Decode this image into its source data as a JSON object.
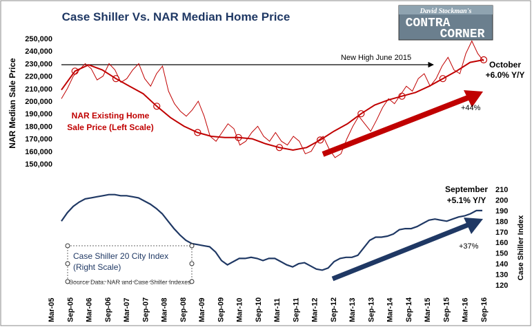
{
  "chart_data": {
    "type": "line",
    "title": "Case Shiller Vs. NAR Median Home Price",
    "logo": {
      "line1": "David Stockman's",
      "line2": "CONTRA",
      "line3": "CORNER"
    },
    "x_tick_labels": [
      "Mar-05",
      "Sep-05",
      "Mar-06",
      "Sep-06",
      "Mar-07",
      "Sep-07",
      "Mar-08",
      "Sep-08",
      "Mar-09",
      "Sep-09",
      "Mar-10",
      "Sep-10",
      "Mar-11",
      "Sep-11",
      "Mar-12",
      "Sep-12",
      "Mar-13",
      "Sep-13",
      "Mar-14",
      "Sep-14",
      "Mar-15",
      "Sep-15",
      "Mar-16",
      "Sep-16"
    ],
    "left_axis": {
      "label": "NAR Median Sale Price",
      "ylim": [
        150000,
        250000
      ],
      "tick_labels": [
        "250,000",
        "240,000",
        "230,000",
        "220,000",
        "210,000",
        "200,000",
        "190,000",
        "180,000",
        "170,000",
        "160,000",
        "150,000"
      ]
    },
    "right_axis": {
      "label": "Case Shiller Index",
      "ylim": [
        120,
        210
      ],
      "tick_labels": [
        "210",
        "200",
        "190",
        "180",
        "170",
        "160",
        "150",
        "140",
        "130",
        "120"
      ]
    },
    "series": [
      {
        "name": "NAR Existing Home Sale Price (Left Scale)",
        "color": "#c00000",
        "axis": "left",
        "values": [
          202000,
          210000,
          220000,
          225000,
          230000,
          226000,
          217000,
          220000,
          230000,
          225000,
          215000,
          218000,
          225000,
          230000,
          218000,
          212000,
          222000,
          228000,
          208000,
          198000,
          192000,
          188000,
          193000,
          200000,
          188000,
          172000,
          168000,
          175000,
          182000,
          178000,
          165000,
          168000,
          175000,
          180000,
          172000,
          168000,
          175000,
          168000,
          165000,
          172000,
          168000,
          158000,
          160000,
          168000,
          172000,
          162000,
          155000,
          158000,
          170000,
          180000,
          188000,
          182000,
          176000,
          185000,
          195000,
          202000,
          198000,
          205000,
          212000,
          208000,
          218000,
          222000,
          212000,
          218000,
          228000,
          235000,
          225000,
          222000,
          238000,
          248000,
          238000,
          232000
        ],
        "trend": [
          209000,
          224000,
          229000,
          225000,
          218000,
          212000,
          206000,
          196000,
          187000,
          180000,
          175000,
          172000,
          171000,
          171000,
          170000,
          166000,
          163000,
          161000,
          163000,
          169000,
          176000,
          182000,
          190000,
          197000,
          201000,
          204000,
          207000,
          212000,
          218000,
          224000,
          231000,
          233000
        ],
        "labels": [
          "NAR Existing Home",
          "Sale Price (Left Scale)"
        ]
      },
      {
        "name": "Case Shiller 20 City Index (Right Scale)",
        "color": "#1f3864",
        "axis": "right",
        "values": [
          180,
          188,
          194,
          198,
          201,
          202,
          203,
          204,
          205,
          205,
          204,
          204,
          203,
          202,
          199,
          196,
          192,
          187,
          180,
          173,
          167,
          162,
          159,
          158,
          157,
          156,
          151,
          143,
          139,
          142,
          145,
          145,
          146,
          145,
          143,
          145,
          145,
          142,
          139,
          137,
          140,
          141,
          138,
          135,
          134,
          136,
          142,
          145,
          146,
          146,
          148,
          155,
          162,
          165,
          165,
          166,
          168,
          172,
          173,
          173,
          175,
          178,
          181,
          182,
          181,
          180,
          182,
          184,
          185,
          187,
          190,
          190
        ],
        "labels": [
          "Case Shiller 20 City Index",
          "(Right Scale)"
        ]
      }
    ],
    "annotations": {
      "new_high": "New High June 2015",
      "october": "October",
      "october_yy": "+6.0% Y/Y",
      "nar_pct": "+44%",
      "september": "September",
      "september_yy": "+5.1% Y/Y",
      "cs_pct": "+37%",
      "source": "Source Data: NAR and Case Shiller Indexes"
    },
    "colors": {
      "nar": "#c00000",
      "case_shiller": "#1f3864",
      "title": "#1f3864"
    }
  }
}
